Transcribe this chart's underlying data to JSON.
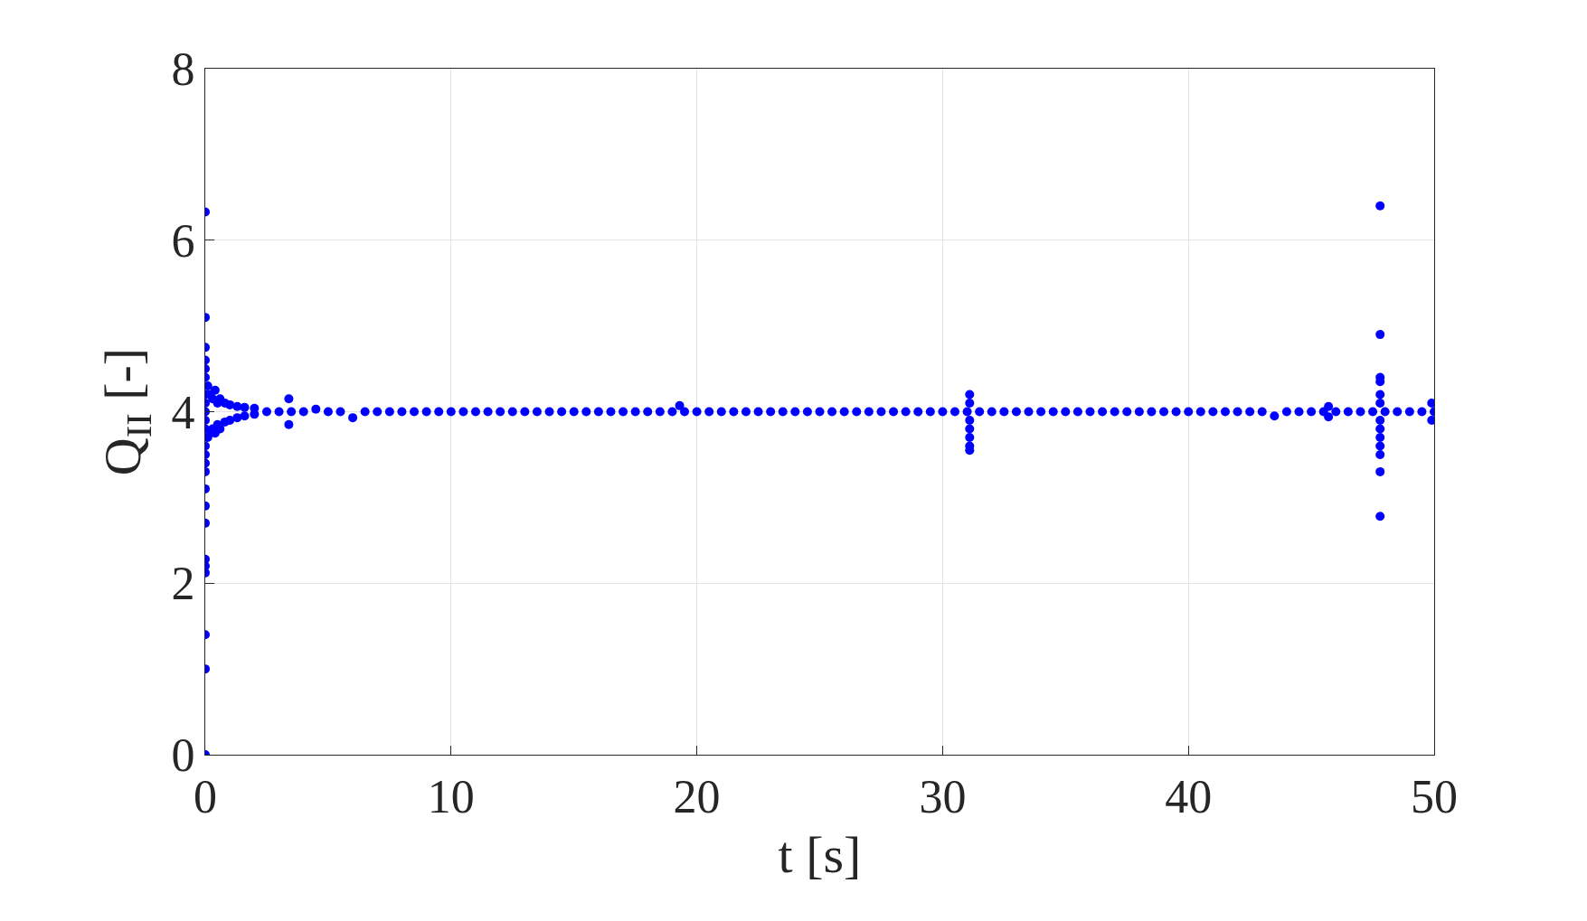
{
  "chart_data": {
    "type": "scatter",
    "xlabel": "t [s]",
    "ylabel": "Q$_{II}$ [-]",
    "xlim": [
      0,
      50
    ],
    "ylim": [
      0,
      8
    ],
    "xticks": [
      0,
      10,
      20,
      30,
      40,
      50
    ],
    "yticks": [
      0,
      2,
      4,
      6,
      8
    ],
    "grid": true,
    "marker": "circle",
    "series": [
      {
        "color": "#0000ff",
        "x": [
          0,
          0,
          0,
          0,
          0,
          0,
          0,
          0,
          0,
          0,
          0,
          0,
          0,
          0,
          0,
          0,
          0,
          0,
          0,
          0,
          0,
          0,
          0,
          0,
          0.1,
          0.1,
          0.2,
          0.2,
          0.3,
          0.3,
          0.4,
          0.4,
          0.5,
          0.5,
          0.6,
          0.6,
          0.8,
          0.8,
          1.0,
          1.0,
          1.3,
          1.3,
          1.6,
          1.6,
          2.0,
          2.0,
          2.5,
          3.0,
          3.4,
          3.4,
          3.5,
          4.0,
          4.5,
          5.0,
          5.5,
          6.0,
          6.5,
          7.0,
          7.5,
          8.0,
          8.5,
          9.0,
          9.5,
          10.0,
          10.5,
          11.0,
          11.5,
          12.0,
          12.5,
          13.0,
          13.5,
          14.0,
          14.5,
          15.0,
          15.5,
          16.0,
          16.5,
          17.0,
          17.5,
          18.0,
          18.5,
          19.0,
          19.3,
          19.5,
          20.0,
          20.5,
          21.0,
          21.5,
          22.0,
          22.5,
          23.0,
          23.5,
          24.0,
          24.5,
          25.0,
          25.5,
          26.0,
          26.5,
          27.0,
          27.5,
          28.0,
          28.5,
          29.0,
          29.5,
          30.0,
          30.5,
          31.0,
          31.1,
          31.1,
          31.1,
          31.1,
          31.1,
          31.1,
          31.1,
          31.5,
          32.0,
          32.5,
          33.0,
          33.5,
          34.0,
          34.5,
          35.0,
          35.5,
          36.0,
          36.5,
          37.0,
          37.5,
          38.0,
          38.5,
          39.0,
          39.5,
          40.0,
          40.5,
          41.0,
          41.5,
          42.0,
          42.5,
          43.0,
          43.5,
          44.0,
          44.5,
          45.0,
          45.5,
          45.7,
          45.7,
          46.0,
          46.5,
          47.0,
          47.5,
          47.8,
          47.8,
          47.8,
          47.8,
          47.8,
          47.8,
          47.8,
          47.8,
          47.8,
          47.8,
          47.8,
          47.8,
          47.8,
          48.0,
          48.5,
          49.0,
          49.5,
          49.9,
          49.9,
          50.0
        ],
        "values": [
          6.33,
          5.1,
          4.75,
          4.6,
          4.5,
          4.4,
          4.2,
          4.1,
          4.0,
          3.9,
          3.8,
          3.6,
          3.5,
          3.4,
          3.3,
          3.1,
          2.9,
          2.7,
          2.28,
          2.2,
          2.12,
          1.4,
          1.0,
          0,
          4.3,
          3.7,
          4.2,
          3.75,
          4.15,
          3.8,
          4.25,
          3.75,
          4.1,
          3.85,
          4.15,
          3.8,
          4.1,
          3.88,
          4.08,
          3.9,
          4.06,
          3.93,
          4.05,
          3.95,
          4.04,
          3.97,
          4.0,
          4.0,
          4.15,
          3.85,
          4.0,
          4.0,
          4.03,
          4.0,
          4.0,
          3.93,
          4.0,
          4.0,
          4.0,
          4.0,
          4.0,
          4.0,
          4.0,
          4.0,
          4.0,
          4.0,
          4.0,
          4.0,
          4.0,
          4.0,
          4.0,
          4.0,
          4.0,
          4.0,
          4.0,
          4.0,
          4.0,
          4.0,
          4.0,
          4.0,
          4.0,
          4.0,
          4.07,
          4.0,
          4.0,
          4.0,
          4.0,
          4.0,
          4.0,
          4.0,
          4.0,
          4.0,
          4.0,
          4.0,
          4.0,
          4.0,
          4.0,
          4.0,
          4.0,
          4.0,
          4.0,
          4.0,
          4.0,
          4.0,
          4.0,
          4.0,
          4.0,
          4.2,
          4.1,
          3.9,
          3.8,
          3.7,
          3.6,
          3.55,
          4.0,
          4.0,
          4.0,
          4.0,
          4.0,
          4.0,
          4.0,
          4.0,
          4.0,
          4.0,
          4.0,
          4.0,
          4.0,
          4.0,
          4.0,
          4.0,
          4.0,
          4.0,
          4.0,
          4.0,
          4.0,
          4.0,
          4.0,
          4.0,
          3.95,
          4.0,
          4.0,
          4.0,
          4.0,
          4.06,
          3.94,
          4.0,
          4.0,
          4.0,
          4.0,
          6.4,
          4.9,
          4.4,
          4.35,
          4.2,
          4.1,
          3.9,
          3.8,
          3.7,
          3.6,
          3.5,
          3.3,
          2.78,
          4.0,
          4.0,
          4.0,
          4.0,
          4.1,
          3.9,
          4.0
        ]
      }
    ]
  }
}
